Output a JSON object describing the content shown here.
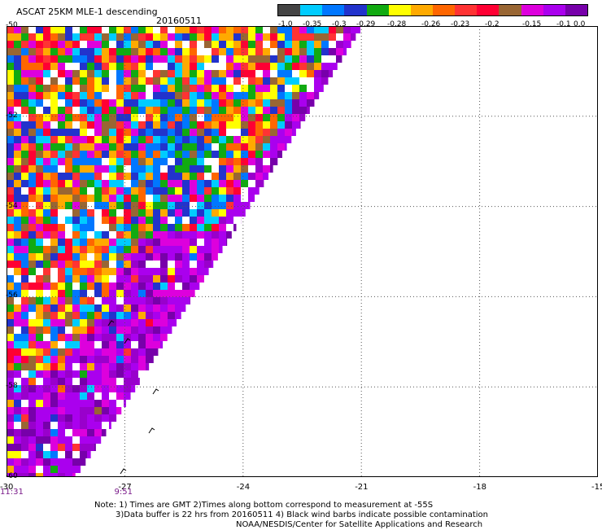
{
  "header": {
    "title": "ASCAT 25KM MLE-1 descending",
    "date": "20160511"
  },
  "colorbar": {
    "colors": [
      "#444444",
      "#00ccff",
      "#0077ff",
      "#2233cc",
      "#11aa11",
      "#ffff00",
      "#ffaa00",
      "#ff6600",
      "#ff3333",
      "#ff0033",
      "#996633",
      "#dd00dd",
      "#aa00ee",
      "#7700aa"
    ],
    "labels": [
      "-1.0",
      "-0.35",
      "-0.3",
      "-0.29",
      "-0.28",
      "-0.26",
      "-0.23",
      "-0.2",
      "-0.15",
      "-0.1",
      "0.0"
    ]
  },
  "axes": {
    "y_ticks": [
      "-50",
      "-52",
      "-54",
      "-56",
      "-58",
      "-60"
    ],
    "x_ticks": [
      "-30",
      "-27",
      "-24",
      "-21",
      "-18",
      "-15"
    ],
    "y_range": [
      -60,
      -50
    ],
    "x_range": [
      -30,
      -15
    ]
  },
  "times": [
    {
      "label": "11:31",
      "lon": -30
    },
    {
      "label": "9:51",
      "lon": -27.1
    }
  ],
  "notes": {
    "line1": "Note: 1) Times are GMT 2)Times along bottom correspond to measurement at -55S",
    "line2": "3)Data buffer is 22 hrs from 20160511 4) Black wind barbs indicate possible contamination",
    "line3": "NOAA/NESDIS/Center for Satellite Applications and Research"
  }
}
